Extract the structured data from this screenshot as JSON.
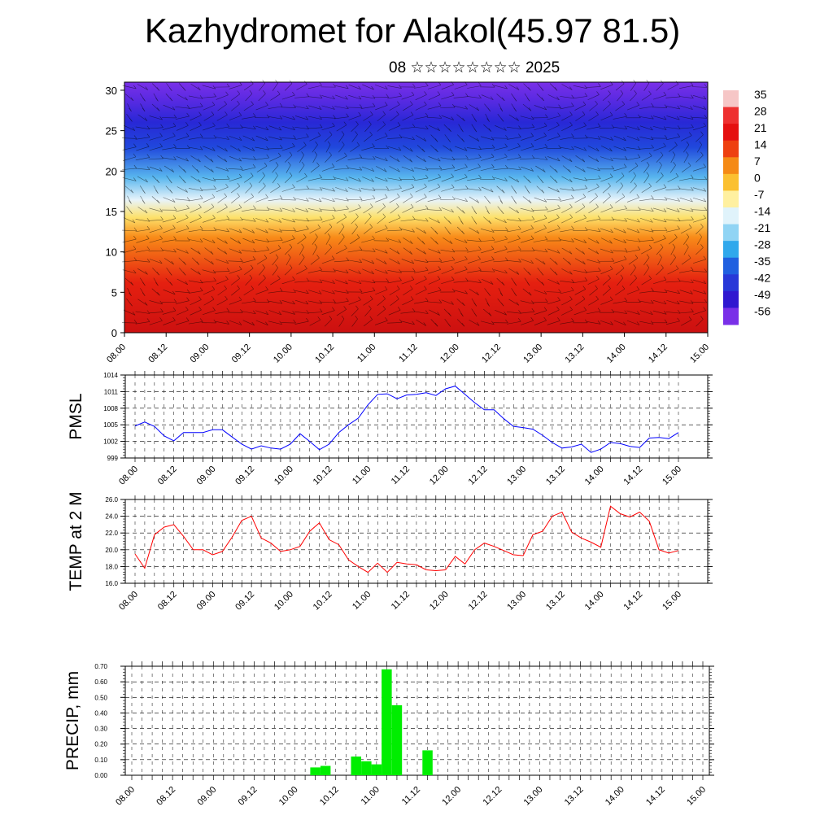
{
  "title": "Kazhydromet for Alakol(45.97 81.5)",
  "subtitle": "08 ☆☆☆☆☆☆☆☆ 2025",
  "time_labels": [
    "08.00",
    "08.12",
    "09.00",
    "09.12",
    "10.00",
    "10.12",
    "11.00",
    "11.12",
    "12.00",
    "12.12",
    "13.00",
    "13.12",
    "14.00",
    "14.12",
    "15.00"
  ],
  "chart_data": [
    {
      "type": "heatmap",
      "title": "Kazhydromet for Alakol(45.97 81.5)",
      "subtitle": "08 ☆☆☆☆☆☆☆☆ 2025",
      "x": [
        "08.00",
        "08.12",
        "09.00",
        "09.12",
        "10.00",
        "10.12",
        "11.00",
        "11.12",
        "12.00",
        "12.12",
        "13.00",
        "13.12",
        "14.00",
        "14.12",
        "15.00"
      ],
      "ylim": [
        0,
        31
      ],
      "y_ticks": [
        0,
        5,
        10,
        15,
        20,
        25,
        30
      ],
      "colorbar": {
        "labels": [
          "35",
          "28",
          "21",
          "14",
          "7",
          "0",
          "-7",
          "-14",
          "-21",
          "-28",
          "-35",
          "-42",
          "-49",
          "-56"
        ],
        "colors": [
          "#f6c6c6",
          "#ee3030",
          "#e51010",
          "#ee4010",
          "#f58a15",
          "#fbc030",
          "#fff0a0",
          "#e0f3fb",
          "#90d4f4",
          "#30a8ec",
          "#2060e0",
          "#2838d8",
          "#3018d0",
          "#7a30e8"
        ]
      },
      "overlay": "wind barbs"
    },
    {
      "type": "line",
      "ylabel": "PMSL",
      "ylim": [
        999,
        1014
      ],
      "y_ticks": [
        "999",
        "1002",
        "1005",
        "1008",
        "1011",
        "1014"
      ],
      "color": "#0000ff",
      "x_labels": [
        "08.00",
        "08.12",
        "09.00",
        "09.12",
        "10.00",
        "10.12",
        "11.00",
        "11.12",
        "12.00",
        "12.12",
        "13.00",
        "13.12",
        "14.00",
        "14.12",
        "15.00"
      ],
      "series": [
        {
          "values": [
            1004.8,
            1005.5,
            1004.7,
            1003.0,
            1002.1,
            1003.6,
            1003.6,
            1003.6,
            1004.1,
            1004.1,
            1002.8,
            1001.5,
            1000.6,
            1001.2,
            1000.8,
            1000.6,
            1001.5,
            1003.4,
            1002.0,
            1000.5,
            1001.5,
            1003.6,
            1005.0,
            1006.2,
            1008.6,
            1010.5,
            1010.6,
            1009.7,
            1010.4,
            1010.5,
            1010.8,
            1010.3,
            1011.5,
            1012.0,
            1010.5,
            1009.0,
            1007.7,
            1007.7,
            1006.1,
            1004.7,
            1004.5,
            1004.2,
            1003.1,
            1001.8,
            1000.8,
            1001.0,
            1001.5,
            1000.0,
            1000.6,
            1001.8,
            1001.6,
            1001.1,
            1000.9,
            1002.6,
            1002.7,
            1002.5,
            1003.6
          ]
        }
      ]
    },
    {
      "type": "line",
      "ylabel": "TEMP at 2 M",
      "ylim": [
        16.0,
        26.0
      ],
      "y_ticks": [
        "16.0",
        "18.0",
        "20.0",
        "22.0",
        "24.0",
        "26.0"
      ],
      "color": "#ff0000",
      "x_labels": [
        "08.00",
        "08.12",
        "09.00",
        "09.12",
        "10.00",
        "10.12",
        "11.00",
        "11.12",
        "12.00",
        "12.12",
        "13.00",
        "13.12",
        "14.00",
        "14.12",
        "15.00"
      ],
      "series": [
        {
          "values": [
            19.5,
            17.8,
            21.8,
            22.7,
            23.0,
            21.6,
            20.0,
            20.0,
            19.4,
            19.8,
            21.5,
            23.5,
            24.0,
            21.4,
            20.8,
            19.8,
            20.0,
            20.4,
            22.2,
            23.2,
            21.2,
            20.6,
            18.8,
            18.0,
            17.3,
            18.4,
            17.3,
            18.5,
            18.3,
            18.2,
            17.6,
            17.5,
            17.6,
            19.2,
            18.3,
            20.0,
            20.8,
            20.4,
            19.9,
            19.4,
            19.3,
            21.8,
            22.2,
            24.0,
            24.5,
            22.1,
            21.4,
            20.9,
            20.3,
            25.2,
            24.3,
            23.9,
            24.5,
            23.4,
            20.0,
            19.6,
            19.9
          ]
        }
      ]
    },
    {
      "type": "bar",
      "ylabel": "PRECIP, mm",
      "ylim": [
        0,
        0.7
      ],
      "y_ticks": [
        "0.00",
        "0.10",
        "0.20",
        "0.30",
        "0.40",
        "0.50",
        "0.60",
        "0.70"
      ],
      "color": "#00ee00",
      "x_labels": [
        "08.00",
        "08.12",
        "09.00",
        "09.12",
        "10.00",
        "10.12",
        "11.00",
        "11.12",
        "12.00",
        "12.12",
        "13.00",
        "13.12",
        "14.00",
        "14.12",
        "15.00"
      ],
      "series": [
        {
          "values": [
            0,
            0,
            0,
            0,
            0,
            0,
            0,
            0,
            0,
            0,
            0,
            0,
            0,
            0,
            0,
            0,
            0,
            0,
            0.05,
            0.06,
            0,
            0,
            0.12,
            0.09,
            0.07,
            0.68,
            0.45,
            0,
            0,
            0.16,
            0,
            0,
            0,
            0,
            0,
            0,
            0,
            0,
            0,
            0,
            0,
            0,
            0,
            0,
            0,
            0,
            0,
            0,
            0,
            0,
            0,
            0,
            0,
            0,
            0,
            0,
            0
          ]
        }
      ]
    }
  ]
}
